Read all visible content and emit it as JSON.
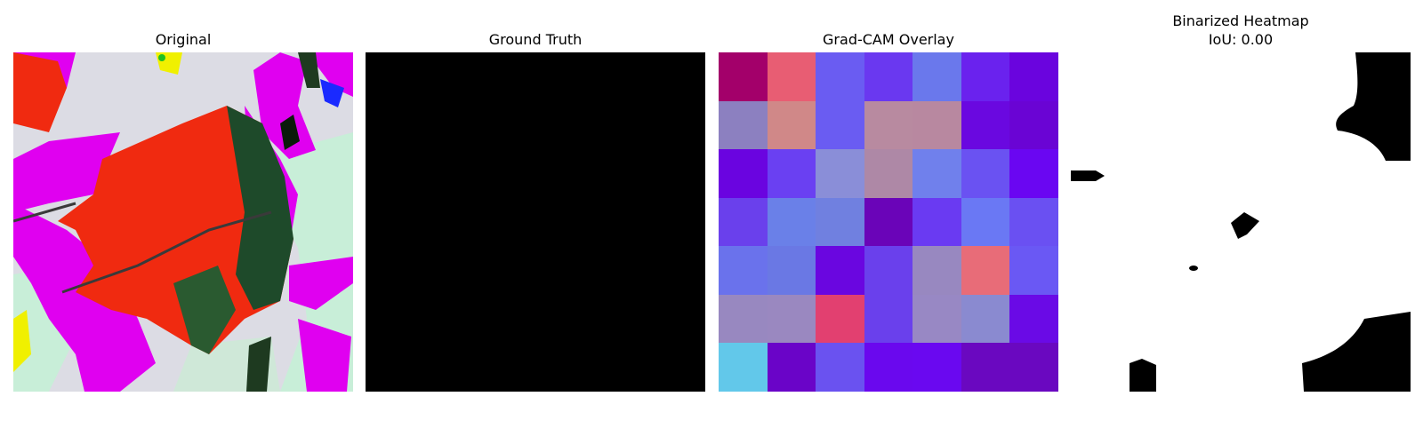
{
  "panels": [
    {
      "title": "Original"
    },
    {
      "title": "Ground Truth"
    },
    {
      "title": "Grad-CAM Overlay"
    },
    {
      "title": "Binarized Heatmap",
      "subtitle": "IoU: 0.00"
    }
  ],
  "gradcam_colors": [
    [
      "#a3006a",
      "#e85d73",
      "#6a5cf2",
      "#6a38f0",
      "#6a78ec",
      "#6a22ee",
      "#6a04de"
    ],
    [
      "#8c80c0",
      "#d08888",
      "#6a5cf2",
      "#b88aa0",
      "#b888a0",
      "#6a08e0",
      "#6a04d4"
    ],
    [
      "#6a04e0",
      "#6a40f2",
      "#8a8ed8",
      "#ae88a6",
      "#7080ec",
      "#6a52f2",
      "#6a06f2"
    ],
    [
      "#6a40ec",
      "#6a80e8",
      "#7080e0",
      "#6a04b8",
      "#6a3af2",
      "#6a78f4",
      "#6a50f2"
    ],
    [
      "#6a72ec",
      "#6a78e4",
      "#6a06e0",
      "#6a40ec",
      "#9888c0",
      "#e86c78",
      "#6a58f4"
    ],
    [
      "#9888c0",
      "#9a88c0",
      "#e24070",
      "#6a40ec",
      "#9888c4",
      "#8a8ad0",
      "#6a0ae6"
    ],
    [
      "#62c8ea",
      "#6a04c8",
      "#6a52f0",
      "#6a08ee",
      "#6a08f0",
      "#6a08c0",
      "#6a08c0"
    ]
  ]
}
